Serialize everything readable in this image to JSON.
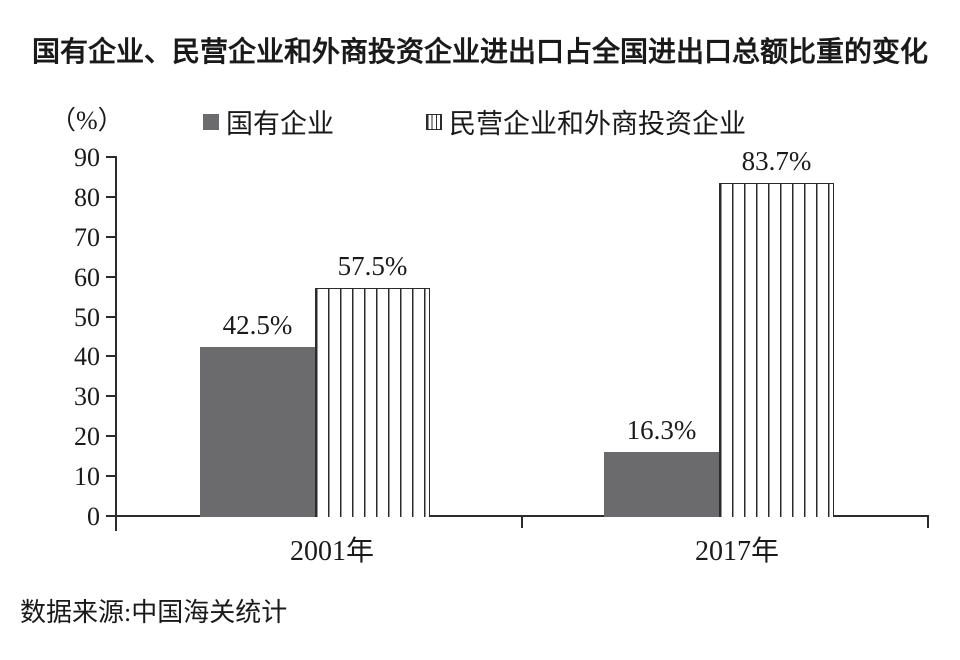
{
  "title": "国有企业、民营企业和外商投资企业进出口占全国进出口总额比重的变化",
  "source_note": "数据来源:中国海关统计",
  "colors": {
    "bar_fill": "#6b6b6e",
    "stripe": "#2b2b2b",
    "axis": "#2b2b2b",
    "text": "#1a1a1a"
  },
  "chart_data": {
    "type": "bar",
    "categories": [
      "2001年",
      "2017年"
    ],
    "series": [
      {
        "name": "国有企业",
        "pattern": "solid-gray",
        "values": [
          42.5,
          16.3
        ],
        "labels": [
          "42.5%",
          "16.3%"
        ]
      },
      {
        "name": "民营企业和外商投资企业",
        "pattern": "vertical-stripes",
        "values": [
          57.5,
          83.7
        ],
        "labels": [
          "57.5%",
          "83.7%"
        ]
      }
    ],
    "ylabel": "（%）",
    "ylim": [
      0,
      90
    ],
    "yticks": [
      0,
      10,
      20,
      30,
      40,
      50,
      60,
      70,
      80,
      90
    ],
    "grid": false,
    "legend_position": "top"
  }
}
